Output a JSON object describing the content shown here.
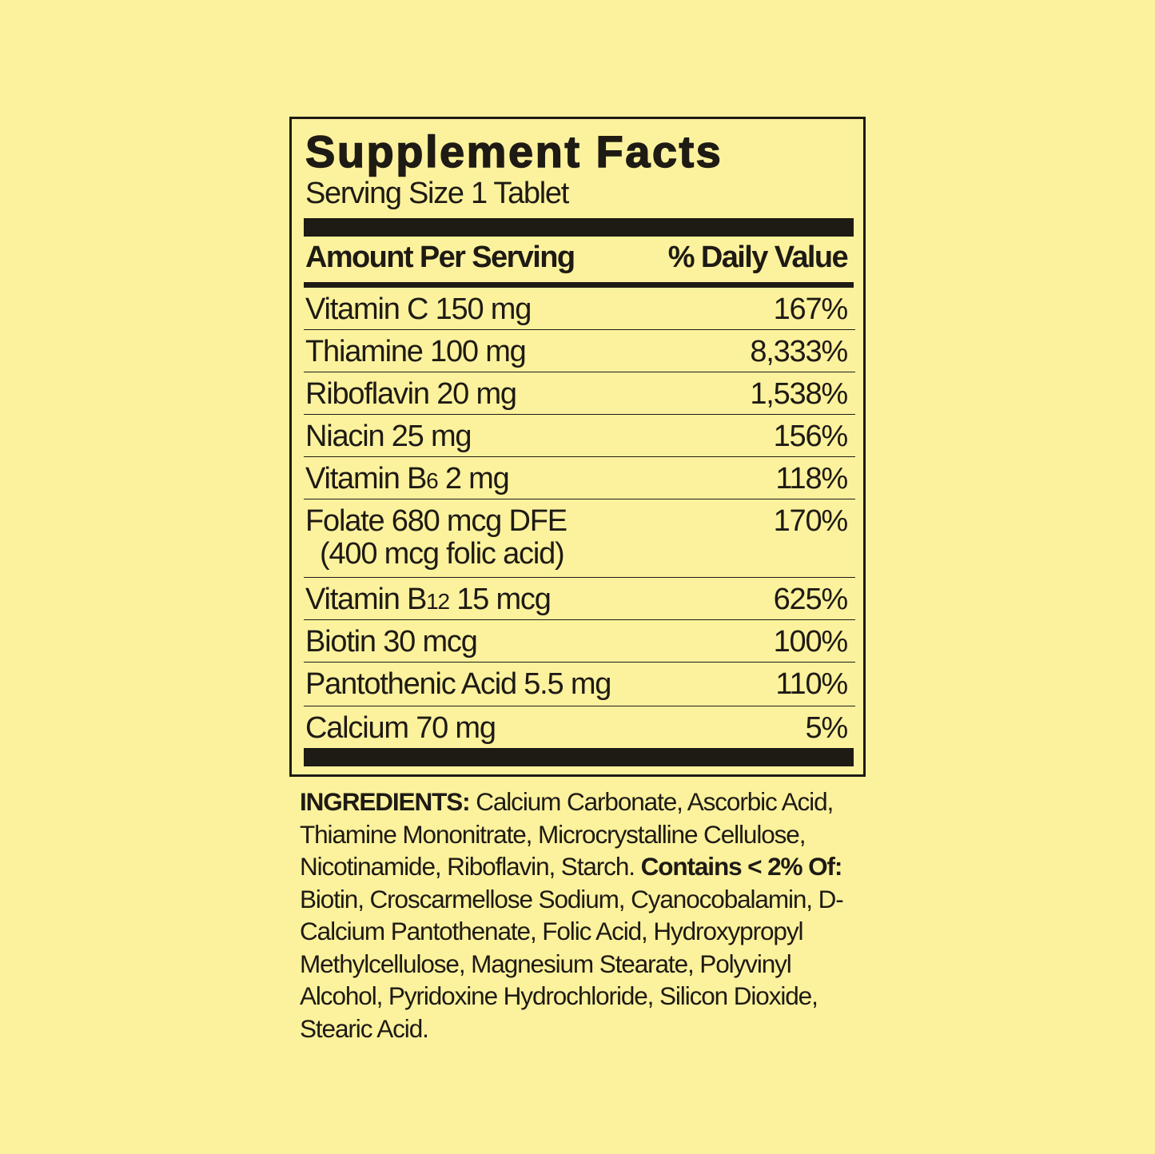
{
  "panel": {
    "title": "Supplement Facts",
    "serving_size": "Serving Size 1 Tablet",
    "header_left": "Amount Per Serving",
    "header_right": "% Daily Value",
    "rows": [
      {
        "name": "Vitamin C 150 mg",
        "sub": "",
        "rest": "",
        "dv": "167%"
      },
      {
        "name": "Thiamine 100 mg",
        "sub": "",
        "rest": "",
        "dv": "8,333%"
      },
      {
        "name": "Riboflavin 20 mg",
        "sub": "",
        "rest": "",
        "dv": "1,538%"
      },
      {
        "name": "Niacin 25 mg",
        "sub": "",
        "rest": "",
        "dv": "156%"
      },
      {
        "name": "Vitamin B",
        "sub": "6",
        "rest": " 2 mg",
        "dv": "118%"
      },
      {
        "name": "Folate 680 mcg DFE",
        "sub": "",
        "rest": "",
        "note": "(400 mcg folic acid)",
        "dv": "170%"
      },
      {
        "name": "Vitamin B",
        "sub": "12",
        "rest": " 15 mcg",
        "dv": "625%"
      },
      {
        "name": "Biotin 30 mcg",
        "sub": "",
        "rest": "",
        "dv": "100%"
      },
      {
        "name": "Pantothenic Acid 5.5 mg",
        "sub": "",
        "rest": "",
        "dv": "110%"
      },
      {
        "name": "Calcium 70 mg",
        "sub": "",
        "rest": "",
        "dv": "5%"
      }
    ]
  },
  "ingredients": {
    "label": "INGREDIENTS:",
    "main": " Calcium Carbonate, Ascorbic Acid, Thiamine Mononitrate, Microcrystalline Cellulose, Nicotinamide, Riboflavin, Starch. ",
    "minor_label": "Contains < 2% Of:",
    "minor": " Biotin, Croscarmellose Sodium, Cyanocobalamin, D-Calcium Pantothenate, Folic Acid, Hydroxypropyl Methylcellulose, Magnesium Stearate, Polyvinyl Alcohol, Pyridoxine Hydrochloride, Silicon Dioxide, Stearic Acid."
  },
  "colors": {
    "background": "#fcf29d",
    "ink": "#1e1a14"
  }
}
